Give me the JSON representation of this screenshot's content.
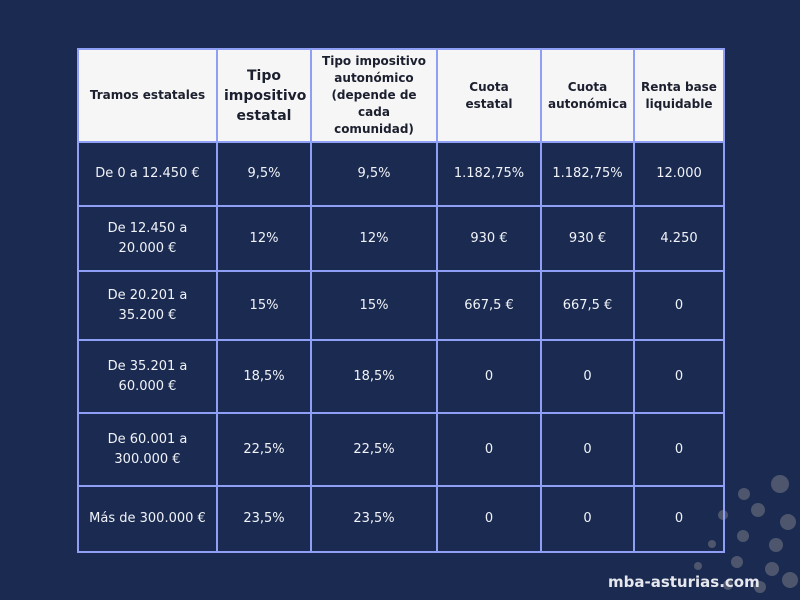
{
  "table": {
    "headers": [
      "Tramos estatales",
      "Tipo impositivo estatal",
      "Tipo impositivo autonómico (depende de cada comunidad)",
      "Cuota estatal",
      "Cuota autonómica",
      "Renta base liquidable"
    ],
    "rows": [
      [
        "De 0 a 12.450 €",
        "9,5%",
        "9,5%",
        "1.182,75%",
        "1.182,75%",
        "12.000"
      ],
      [
        "De 12.450 a 20.000 €",
        "12%",
        "12%",
        "930 €",
        "930 €",
        "4.250"
      ],
      [
        "De 20.201 a 35.200 €",
        "15%",
        "15%",
        "667,5 €",
        "667,5 €",
        "0"
      ],
      [
        "De 35.201 a 60.000 €",
        "18,5%",
        "18,5%",
        "0",
        "0",
        "0"
      ],
      [
        "De 60.001 a 300.000 €",
        "22,5%",
        "22,5%",
        "0",
        "0",
        "0"
      ],
      [
        "Más de 300.000 €",
        "23,5%",
        "23,5%",
        "0",
        "0",
        "0"
      ]
    ]
  },
  "brand": "mba-asturias.com",
  "colors": {
    "background": "#1a2a50",
    "border": "#8f9ff5",
    "header_bg": "#f6f6f6"
  }
}
